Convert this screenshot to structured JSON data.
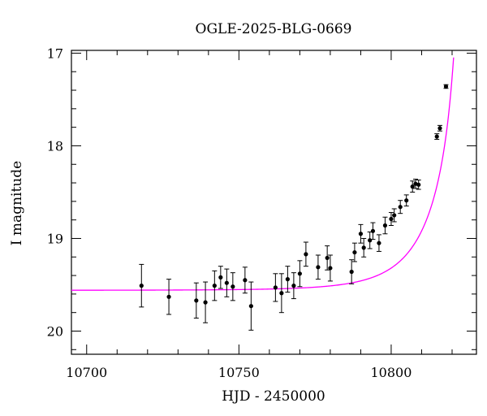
{
  "chart_data": {
    "type": "scatter",
    "title": "OGLE-2025-BLG-0669",
    "xlabel": "HJD - 2450000",
    "ylabel": "I magnitude",
    "xlim": [
      10695,
      10828
    ],
    "ylim": [
      20.25,
      16.97
    ],
    "y_inverted": true,
    "grid": false,
    "x_ticks": [
      10700,
      10750,
      10800
    ],
    "y_ticks": [
      17,
      18,
      19,
      20
    ],
    "model_color": "#ff00ff",
    "point_color": "#000000",
    "model_curve": {
      "baseline_mag": 19.56,
      "t_peak": 10822.0,
      "tau": 19.0,
      "u0": 0.06
    },
    "points": [
      {
        "x": 10718,
        "y": 19.51,
        "err": 0.23
      },
      {
        "x": 10727,
        "y": 19.63,
        "err": 0.19
      },
      {
        "x": 10736,
        "y": 19.67,
        "err": 0.19
      },
      {
        "x": 10739,
        "y": 19.69,
        "err": 0.22
      },
      {
        "x": 10742,
        "y": 19.51,
        "err": 0.16
      },
      {
        "x": 10744,
        "y": 19.42,
        "err": 0.12
      },
      {
        "x": 10746,
        "y": 19.48,
        "err": 0.15
      },
      {
        "x": 10748,
        "y": 19.52,
        "err": 0.15
      },
      {
        "x": 10752,
        "y": 19.45,
        "err": 0.14
      },
      {
        "x": 10754,
        "y": 19.73,
        "err": 0.26
      },
      {
        "x": 10762,
        "y": 19.53,
        "err": 0.15
      },
      {
        "x": 10764,
        "y": 19.59,
        "err": 0.21
      },
      {
        "x": 10766,
        "y": 19.44,
        "err": 0.14
      },
      {
        "x": 10768,
        "y": 19.51,
        "err": 0.14
      },
      {
        "x": 10770,
        "y": 19.38,
        "err": 0.14
      },
      {
        "x": 10772,
        "y": 19.17,
        "err": 0.13
      },
      {
        "x": 10776,
        "y": 19.31,
        "err": 0.13
      },
      {
        "x": 10779,
        "y": 19.21,
        "err": 0.13
      },
      {
        "x": 10780,
        "y": 19.32,
        "err": 0.14
      },
      {
        "x": 10787,
        "y": 19.36,
        "err": 0.13
      },
      {
        "x": 10788,
        "y": 19.15,
        "err": 0.1
      },
      {
        "x": 10790,
        "y": 18.95,
        "err": 0.1
      },
      {
        "x": 10791,
        "y": 19.1,
        "err": 0.1
      },
      {
        "x": 10793,
        "y": 19.02,
        "err": 0.09
      },
      {
        "x": 10794,
        "y": 18.92,
        "err": 0.09
      },
      {
        "x": 10796,
        "y": 19.05,
        "err": 0.09
      },
      {
        "x": 10798,
        "y": 18.86,
        "err": 0.09
      },
      {
        "x": 10800,
        "y": 18.79,
        "err": 0.07
      },
      {
        "x": 10801,
        "y": 18.75,
        "err": 0.07
      },
      {
        "x": 10803,
        "y": 18.66,
        "err": 0.07
      },
      {
        "x": 10805,
        "y": 18.59,
        "err": 0.06
      },
      {
        "x": 10807,
        "y": 18.44,
        "err": 0.06
      },
      {
        "x": 10808,
        "y": 18.41,
        "err": 0.05
      },
      {
        "x": 10809,
        "y": 18.42,
        "err": 0.05
      },
      {
        "x": 10815,
        "y": 17.9,
        "err": 0.03
      },
      {
        "x": 10816,
        "y": 17.81,
        "err": 0.03
      },
      {
        "x": 10818,
        "y": 17.36,
        "err": 0.02
      }
    ]
  }
}
